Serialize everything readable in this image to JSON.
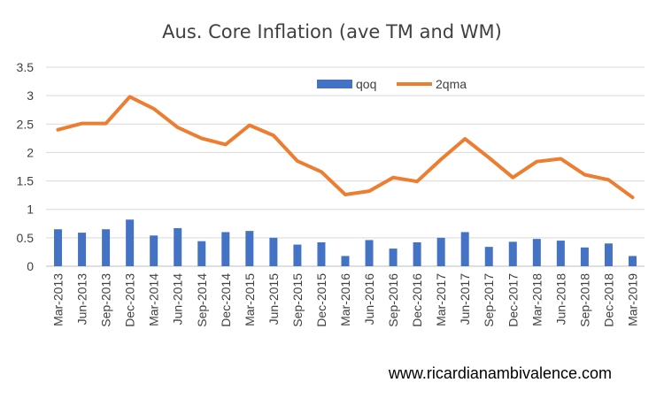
{
  "chart_data": {
    "type": "bar+line",
    "title": "Aus. Core Inflation (ave TM and WM)",
    "xlabel": "",
    "ylabel": "",
    "categories": [
      "Mar-2013",
      "Jun-2013",
      "Sep-2013",
      "Dec-2013",
      "Mar-2014",
      "Jun-2014",
      "Sep-2014",
      "Dec-2014",
      "Mar-2015",
      "Jun-2015",
      "Sep-2015",
      "Dec-2015",
      "Mar-2016",
      "Jun-2016",
      "Sep-2016",
      "Dec-2016",
      "Mar-2017",
      "Jun-2017",
      "Sep-2017",
      "Dec-2017",
      "Mar-2018",
      "Jun-2018",
      "Sep-2018",
      "Dec-2018",
      "Mar-2019"
    ],
    "series": [
      {
        "name": "qoq",
        "type": "bar",
        "color": "#4472C4",
        "values": [
          0.65,
          0.59,
          0.65,
          0.82,
          0.54,
          0.67,
          0.44,
          0.6,
          0.62,
          0.5,
          0.38,
          0.42,
          0.18,
          0.46,
          0.31,
          0.42,
          0.5,
          0.6,
          0.34,
          0.43,
          0.48,
          0.45,
          0.33,
          0.4,
          0.18
        ]
      },
      {
        "name": "2qma",
        "type": "line",
        "color": "#ED7D31",
        "values": [
          2.4,
          2.51,
          2.51,
          2.98,
          2.77,
          2.44,
          2.25,
          2.14,
          2.48,
          2.3,
          1.85,
          1.66,
          1.26,
          1.32,
          1.56,
          1.49,
          1.88,
          2.24,
          1.91,
          1.56,
          1.84,
          1.89,
          1.61,
          1.52,
          1.21
        ]
      }
    ],
    "ylim": [
      0,
      3.5
    ],
    "yticks": [
      "0",
      "0.5",
      "1",
      "1.5",
      "2",
      "2.5",
      "3",
      "3.5"
    ],
    "grid": true,
    "legend": "top-center"
  },
  "watermark": "www.ricardianambivalence.com"
}
